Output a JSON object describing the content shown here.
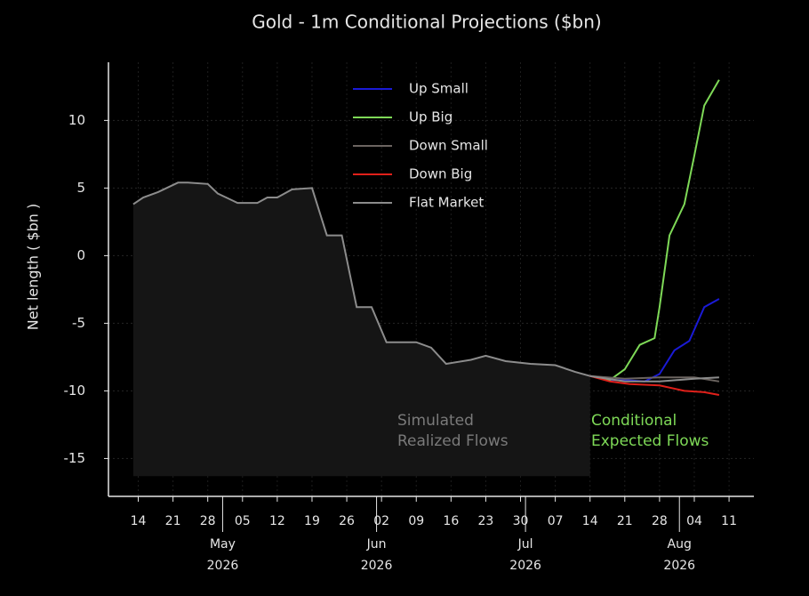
{
  "chart_data": {
    "type": "line",
    "title": "Gold - 1m Conditional Projections ($bn)",
    "ylabel": "Net length ( $bn )",
    "ylim": [
      -17.8,
      14.3
    ],
    "yticks": [
      -15,
      -10,
      -5,
      0,
      5,
      10
    ],
    "xlim": [
      "2026-04-08",
      "2026-08-16"
    ],
    "xticks": [
      {
        "value": "2026-04-14",
        "label": "14"
      },
      {
        "value": "2026-04-21",
        "label": "21"
      },
      {
        "value": "2026-04-28",
        "label": "28"
      },
      {
        "value": "2026-05-05",
        "label": "05"
      },
      {
        "value": "2026-05-12",
        "label": "12"
      },
      {
        "value": "2026-05-19",
        "label": "19"
      },
      {
        "value": "2026-05-26",
        "label": "26"
      },
      {
        "value": "2026-06-02",
        "label": "02"
      },
      {
        "value": "2026-06-09",
        "label": "09"
      },
      {
        "value": "2026-06-16",
        "label": "16"
      },
      {
        "value": "2026-06-23",
        "label": "23"
      },
      {
        "value": "2026-06-30",
        "label": "30"
      },
      {
        "value": "2026-07-07",
        "label": "07"
      },
      {
        "value": "2026-07-14",
        "label": "14"
      },
      {
        "value": "2026-07-21",
        "label": "21"
      },
      {
        "value": "2026-07-28",
        "label": "28"
      },
      {
        "value": "2026-08-04",
        "label": "04"
      },
      {
        "value": "2026-08-11",
        "label": "11"
      }
    ],
    "xticks_major": [
      {
        "value": "2026-05-01",
        "label": "May",
        "sublabel": "2026"
      },
      {
        "value": "2026-06-01",
        "label": "Jun",
        "sublabel": "2026"
      },
      {
        "value": "2026-07-01",
        "label": "Jul",
        "sublabel": "2026"
      },
      {
        "value": "2026-08-01",
        "label": "Aug",
        "sublabel": "2026"
      }
    ],
    "grid": true,
    "legend": "upper center",
    "history": {
      "color": "#8c8c8c",
      "fill": "#151515",
      "area_floor": -16.3,
      "x": [
        "2026-04-13",
        "2026-04-15",
        "2026-04-18",
        "2026-04-22",
        "2026-04-24",
        "2026-04-28",
        "2026-04-30",
        "2026-05-04",
        "2026-05-08",
        "2026-05-10",
        "2026-05-12",
        "2026-05-15",
        "2026-05-19",
        "2026-05-22",
        "2026-05-25",
        "2026-05-28",
        "2026-05-31",
        "2026-06-03",
        "2026-06-09",
        "2026-06-12",
        "2026-06-15",
        "2026-06-20",
        "2026-06-23",
        "2026-06-27",
        "2026-07-02",
        "2026-07-07",
        "2026-07-11",
        "2026-07-14"
      ],
      "values": [
        3.8,
        4.3,
        4.7,
        5.4,
        5.4,
        5.3,
        4.6,
        3.9,
        3.9,
        4.3,
        4.3,
        4.9,
        5.0,
        1.5,
        1.5,
        -3.8,
        -3.8,
        -6.4,
        -6.4,
        -6.8,
        -8.0,
        -7.7,
        -7.4,
        -7.8,
        -8.0,
        -8.1,
        -8.6,
        -8.9
      ]
    },
    "series": [
      {
        "name": "Up Small",
        "color": "#1a1ad6",
        "x": [
          "2026-07-14",
          "2026-07-18",
          "2026-07-21",
          "2026-07-25",
          "2026-07-28",
          "2026-07-31",
          "2026-08-03",
          "2026-08-06",
          "2026-08-09"
        ],
        "values": [
          -8.9,
          -9.2,
          -9.2,
          -9.3,
          -8.75,
          -7.0,
          -6.3,
          -3.8,
          -3.2
        ]
      },
      {
        "name": "Up Big",
        "color": "#7ed957",
        "x": [
          "2026-07-14",
          "2026-07-18",
          "2026-07-21",
          "2026-07-24",
          "2026-07-27",
          "2026-07-28",
          "2026-07-30",
          "2026-08-02",
          "2026-08-04",
          "2026-08-06",
          "2026-08-09"
        ],
        "values": [
          -8.9,
          -9.2,
          -8.4,
          -6.6,
          -6.1,
          -3.8,
          1.5,
          3.8,
          7.4,
          11.1,
          13.0
        ]
      },
      {
        "name": "Down Small",
        "color": "#6b6460",
        "x": [
          "2026-07-14",
          "2026-07-21",
          "2026-07-28",
          "2026-08-04",
          "2026-08-09"
        ],
        "values": [
          -8.9,
          -9.1,
          -9.0,
          -9.0,
          -9.3
        ]
      },
      {
        "name": "Down Big",
        "color": "#e0201a",
        "x": [
          "2026-07-14",
          "2026-07-18",
          "2026-07-22",
          "2026-07-28",
          "2026-08-02",
          "2026-08-06",
          "2026-08-09"
        ],
        "values": [
          -8.9,
          -9.3,
          -9.5,
          -9.6,
          -10.0,
          -10.1,
          -10.3
        ]
      },
      {
        "name": "Flat Market",
        "color": "#8c8c8c",
        "x": [
          "2026-07-14",
          "2026-07-21",
          "2026-07-28",
          "2026-08-04",
          "2026-08-09"
        ],
        "values": [
          -8.9,
          -9.3,
          -9.3,
          -9.1,
          -9.0
        ]
      }
    ],
    "annotations": [
      {
        "lines": [
          "Simulated",
          "Realized Flows"
        ],
        "color": "#7a7a7a"
      },
      {
        "lines": [
          "Conditional",
          "Expected Flows"
        ],
        "color": "#7ed957"
      }
    ]
  }
}
